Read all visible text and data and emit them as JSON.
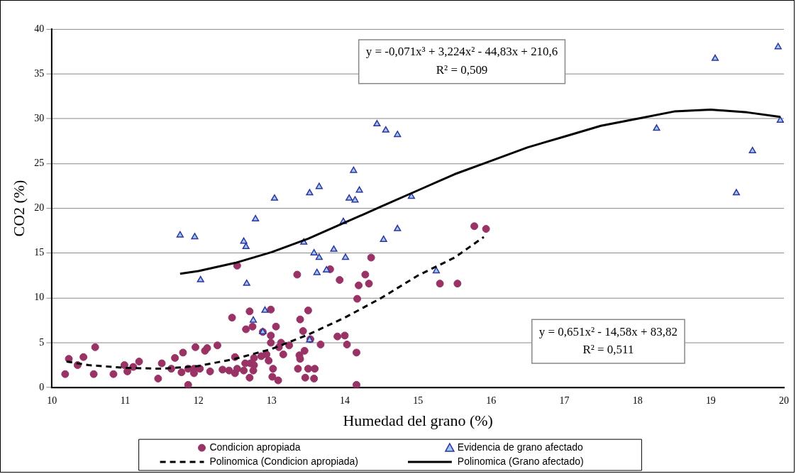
{
  "chart_data": {
    "type": "scatter",
    "xlabel": "Humedad del grano (%)",
    "ylabel": "CO2 (%)",
    "xlim": [
      10,
      20
    ],
    "xticks": [
      10,
      11,
      12,
      13,
      14,
      15,
      16,
      17,
      18,
      19,
      20
    ],
    "ylim": [
      0,
      40
    ],
    "yticks": [
      0,
      5,
      10,
      15,
      20,
      25,
      30,
      35,
      40
    ],
    "grid": "y",
    "legend": "bottom",
    "annotations": [
      "y = -0,071x³ + 3,224x² - 44,83x + 210,6\nR² = 0,509",
      "y = 0,651x² - 14,58x + 83,82\nR² = 0,511"
    ],
    "series": [
      {
        "name": "Condicion apropiada",
        "type": "scatter",
        "marker": "circle",
        "color": "#993366",
        "x": [
          10.18,
          10.23,
          10.35,
          10.43,
          10.59,
          10.57,
          10.84,
          10.99,
          11.03,
          11.11,
          11.19,
          11.45,
          11.5,
          11.63,
          11.68,
          11.77,
          11.79,
          11.86,
          11.86,
          11.94,
          11.94,
          11.96,
          12.02,
          12.09,
          12.12,
          12.16,
          12.26,
          12.33,
          12.42,
          12.46,
          12.5,
          12.5,
          12.53,
          12.53,
          12.62,
          12.64,
          12.65,
          12.7,
          12.7,
          12.74,
          12.71,
          12.76,
          12.76,
          12.75,
          12.86,
          12.88,
          12.93,
          12.96,
          12.99,
          12.99,
          12.99,
          13.02,
          13.01,
          13.06,
          13.09,
          13.1,
          13.13,
          13.16,
          13.24,
          13.35,
          13.39,
          13.43,
          13.38,
          13.39,
          13.45,
          13.36,
          13.46,
          13.5,
          13.5,
          13.59,
          13.58,
          13.67,
          13.53,
          13.8,
          13.93,
          13.9,
          14.0,
          14.03,
          14.19,
          14.17,
          14.16,
          14.16,
          14.28,
          14.33,
          14.36,
          15.3,
          15.54,
          15.77,
          15.93
        ],
        "values": [
          1.5,
          3.2,
          2.5,
          3.4,
          4.5,
          1.5,
          1.5,
          2.5,
          1.8,
          2.3,
          2.9,
          1.0,
          2.7,
          2.1,
          3.3,
          1.7,
          3.9,
          2.1,
          0.3,
          2.1,
          1.6,
          4.5,
          2.1,
          4.1,
          4.4,
          1.8,
          4.7,
          2.0,
          1.9,
          7.8,
          3.4,
          1.6,
          13.6,
          2.1,
          1.9,
          2.7,
          6.5,
          8.5,
          1.1,
          6.8,
          2.7,
          3.3,
          2.5,
          1.9,
          3.5,
          6.2,
          3.7,
          3.0,
          8.7,
          5.8,
          5.0,
          2.1,
          1.2,
          6.8,
          0.8,
          4.5,
          5.0,
          3.7,
          4.7,
          12.6,
          7.6,
          6.3,
          3.6,
          3.2,
          4.1,
          2.1,
          1.1,
          8.6,
          2.1,
          2.1,
          1.0,
          4.8,
          5.4,
          13.2,
          12.0,
          5.7,
          5.8,
          4.8,
          11.4,
          9.9,
          3.9,
          0.3,
          12.6,
          11.6,
          14.5,
          11.6,
          11.6,
          18.0,
          17.7
        ]
      },
      {
        "name": "Evidencia de grano afectado",
        "type": "scatter",
        "marker": "triangle",
        "color": "#99ccff",
        "x": [
          11.75,
          11.95,
          12.03,
          12.62,
          12.65,
          12.66,
          12.78,
          12.75,
          12.91,
          12.88,
          13.52,
          13.04,
          13.44,
          13.52,
          13.65,
          13.58,
          13.65,
          13.62,
          13.75,
          13.85,
          13.98,
          14.01,
          14.06,
          14.12,
          14.14,
          14.2,
          14.44,
          14.56,
          14.72,
          14.53,
          14.72,
          14.91,
          15.25,
          18.26,
          19.06,
          19.35,
          19.57,
          19.92,
          19.95
        ],
        "values": [
          17.0,
          16.8,
          12.0,
          16.3,
          15.7,
          11.6,
          18.8,
          7.5,
          8.6,
          6.2,
          5.3,
          21.1,
          16.2,
          21.7,
          22.4,
          15.0,
          14.5,
          12.8,
          13.1,
          15.4,
          18.5,
          14.5,
          21.1,
          24.2,
          20.9,
          22.0,
          29.4,
          28.7,
          28.2,
          16.5,
          17.7,
          21.3,
          13.0,
          28.9,
          36.7,
          21.7,
          26.4,
          38.0,
          29.8
        ]
      },
      {
        "name": "Polinomica (Condicion apropiada)",
        "type": "line",
        "line_style": "dashed",
        "marker": "none",
        "color": "#000000",
        "x": [
          10.2,
          10.5,
          11,
          11.5,
          12,
          12.5,
          13,
          13.5,
          14,
          14.5,
          15,
          15.5,
          15.9
        ],
        "values": [
          2.9,
          2.5,
          2.2,
          2.1,
          2.4,
          3.2,
          4.3,
          5.9,
          7.8,
          10.0,
          12.5,
          14.5,
          16.8
        ]
      },
      {
        "name": "Polinomica (Grano afectado)",
        "type": "line",
        "line_style": "solid",
        "marker": "none",
        "color": "#000000",
        "x": [
          11.75,
          12,
          12.5,
          13,
          13.5,
          14,
          14.5,
          15,
          15.5,
          16,
          16.5,
          17,
          17.5,
          18,
          18.5,
          19,
          19.5,
          19.95
        ],
        "values": [
          12.7,
          13.0,
          13.9,
          15.1,
          16.6,
          18.4,
          20.2,
          22.0,
          23.8,
          25.3,
          26.8,
          28.0,
          29.2,
          30.0,
          30.8,
          31.0,
          30.7,
          30.2
        ]
      }
    ]
  }
}
